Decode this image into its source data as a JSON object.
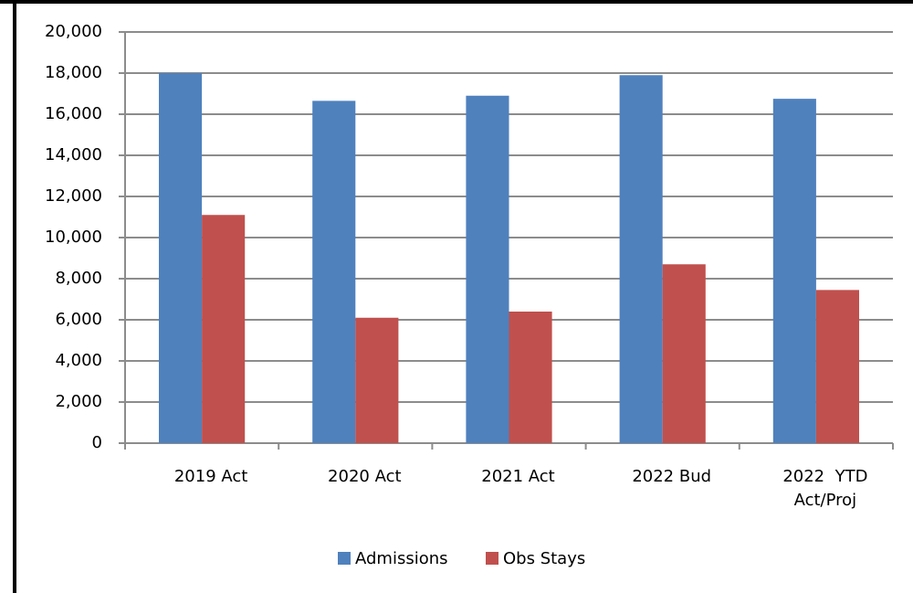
{
  "chart_data": {
    "type": "bar",
    "categories": [
      "2019 Act",
      "2020 Act",
      "2021 Act",
      "2022 Bud",
      "2022  YTD Act/Proj"
    ],
    "series": [
      {
        "name": "Admissions",
        "color": "#4f81bd",
        "values": [
          18000,
          16650,
          16900,
          17900,
          16750
        ]
      },
      {
        "name": "Obs Stays",
        "color": "#c0504d",
        "values": [
          11100,
          6100,
          6400,
          8700,
          7450
        ]
      }
    ],
    "ylim": [
      0,
      20000
    ],
    "yticks": [
      0,
      {
        "value": 2000,
        "label": "2,000"
      },
      {
        "value": 4000,
        "label": "4,000"
      },
      {
        "value": 6000,
        "label": "6,000"
      },
      {
        "value": 8000,
        "label": "8,000"
      },
      {
        "value": 10000,
        "label": "10,000"
      },
      {
        "value": 12000,
        "label": "12,000"
      },
      {
        "value": 14000,
        "label": "14,000"
      },
      {
        "value": 16000,
        "label": "16,000"
      },
      {
        "value": 18000,
        "label": "18,000"
      },
      {
        "value": 20000,
        "label": "20,000"
      }
    ],
    "grid": true,
    "legend": "bottom"
  }
}
